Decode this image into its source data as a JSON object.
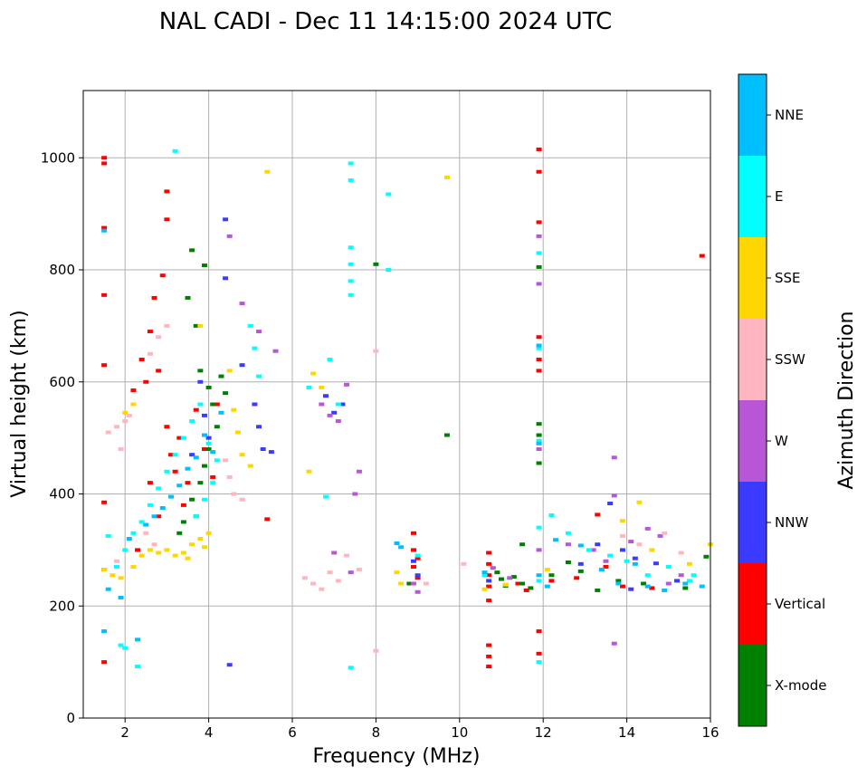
{
  "chart_data": {
    "type": "scatter",
    "title": "NAL CADI - Dec 11 14:15:00 2024 UTC",
    "xlabel": "Frequency (MHz)",
    "ylabel": "Virtual height (km)",
    "xlim": [
      1,
      16
    ],
    "ylim": [
      0,
      1120
    ],
    "xticks": [
      2,
      4,
      6,
      8,
      10,
      12,
      14,
      16
    ],
    "yticks": [
      0,
      200,
      400,
      600,
      800,
      1000
    ],
    "grid": true,
    "colorbar": {
      "label": "Azimuth Direction",
      "categories": [
        "X-mode",
        "Vertical",
        "NNW",
        "W",
        "SSW",
        "SSE",
        "E",
        "NNE"
      ],
      "colors": [
        "#008000",
        "#ff0000",
        "#3b3bff",
        "#b857d6",
        "#ffb6c1",
        "#ffd700",
        "#00ffff",
        "#00bfff"
      ]
    },
    "series": [
      {
        "name": "Vertical",
        "points": [
          [
            1.5,
            1000
          ],
          [
            1.5,
            990
          ],
          [
            1.5,
            875
          ],
          [
            1.5,
            755
          ],
          [
            1.5,
            630
          ],
          [
            1.5,
            385
          ],
          [
            1.5,
            265
          ],
          [
            1.5,
            100
          ],
          [
            2.2,
            585
          ],
          [
            2.4,
            640
          ],
          [
            2.5,
            600
          ],
          [
            2.6,
            690
          ],
          [
            2.7,
            750
          ],
          [
            2.8,
            620
          ],
          [
            2.9,
            790
          ],
          [
            3.0,
            520
          ],
          [
            3.1,
            470
          ],
          [
            3.2,
            440
          ],
          [
            3.3,
            500
          ],
          [
            3.5,
            420
          ],
          [
            3.7,
            550
          ],
          [
            3.9,
            480
          ],
          [
            4.1,
            430
          ],
          [
            4.2,
            560
          ],
          [
            3.0,
            940
          ],
          [
            3.0,
            890
          ],
          [
            2.6,
            420
          ],
          [
            2.8,
            360
          ],
          [
            2.3,
            300
          ],
          [
            3.4,
            380
          ],
          [
            5.4,
            355
          ],
          [
            8.9,
            330
          ],
          [
            8.9,
            300
          ],
          [
            8.9,
            270
          ],
          [
            9.0,
            250
          ],
          [
            9.0,
            285
          ],
          [
            10.7,
            295
          ],
          [
            10.7,
            275
          ],
          [
            10.7,
            255
          ],
          [
            10.7,
            235
          ],
          [
            10.7,
            210
          ],
          [
            10.7,
            130
          ],
          [
            10.7,
            110
          ],
          [
            10.7,
            92
          ],
          [
            11.9,
            1015
          ],
          [
            11.9,
            975
          ],
          [
            11.9,
            885
          ],
          [
            11.9,
            680
          ],
          [
            11.9,
            640
          ],
          [
            11.9,
            620
          ],
          [
            11.9,
            155
          ],
          [
            11.9,
            115
          ],
          [
            12.2,
            245
          ],
          [
            12.8,
            250
          ],
          [
            13.3,
            363
          ],
          [
            13.5,
            270
          ],
          [
            13.9,
            235
          ],
          [
            14.6,
            232
          ],
          [
            15.8,
            825
          ],
          [
            11.4,
            240
          ],
          [
            11.6,
            228
          ]
        ]
      },
      {
        "name": "X-mode",
        "points": [
          [
            3.6,
            835
          ],
          [
            3.9,
            808
          ],
          [
            3.5,
            750
          ],
          [
            3.7,
            700
          ],
          [
            3.8,
            620
          ],
          [
            4.0,
            590
          ],
          [
            4.1,
            560
          ],
          [
            4.2,
            520
          ],
          [
            4.0,
            480
          ],
          [
            3.9,
            450
          ],
          [
            3.8,
            420
          ],
          [
            3.6,
            390
          ],
          [
            3.4,
            350
          ],
          [
            3.3,
            330
          ],
          [
            4.3,
            610
          ],
          [
            4.4,
            580
          ],
          [
            3.7,
            360
          ],
          [
            8.0,
            810
          ],
          [
            9.7,
            505
          ],
          [
            11.9,
            525
          ],
          [
            11.9,
            505
          ],
          [
            11.9,
            805
          ],
          [
            11.9,
            455
          ],
          [
            10.9,
            260
          ],
          [
            11.0,
            248
          ],
          [
            11.1,
            236
          ],
          [
            11.3,
            252
          ],
          [
            11.5,
            240
          ],
          [
            11.7,
            232
          ],
          [
            12.6,
            278
          ],
          [
            12.9,
            262
          ],
          [
            13.3,
            228
          ],
          [
            13.8,
            245
          ],
          [
            14.4,
            240
          ],
          [
            15.4,
            232
          ],
          [
            15.9,
            288
          ],
          [
            8.8,
            240
          ],
          [
            11.5,
            310
          ],
          [
            12.2,
            255
          ]
        ]
      },
      {
        "name": "NNW",
        "points": [
          [
            3.8,
            600
          ],
          [
            3.9,
            540
          ],
          [
            4.0,
            500
          ],
          [
            3.6,
            470
          ],
          [
            4.4,
            890
          ],
          [
            4.4,
            785
          ],
          [
            4.8,
            630
          ],
          [
            5.1,
            560
          ],
          [
            5.2,
            520
          ],
          [
            5.3,
            480
          ],
          [
            6.8,
            575
          ],
          [
            7.0,
            545
          ],
          [
            7.2,
            560
          ],
          [
            8.9,
            280
          ],
          [
            9.0,
            255
          ],
          [
            10.7,
            245
          ],
          [
            13.6,
            383
          ],
          [
            13.3,
            310
          ],
          [
            13.9,
            300
          ],
          [
            14.2,
            285
          ],
          [
            14.7,
            276
          ],
          [
            15.2,
            245
          ],
          [
            12.9,
            275
          ],
          [
            14.1,
            230
          ],
          [
            4.5,
            95
          ],
          [
            5.5,
            475
          ]
        ]
      },
      {
        "name": "W",
        "points": [
          [
            4.5,
            860
          ],
          [
            4.8,
            740
          ],
          [
            5.2,
            690
          ],
          [
            5.6,
            655
          ],
          [
            6.7,
            560
          ],
          [
            6.9,
            540
          ],
          [
            7.1,
            530
          ],
          [
            7.3,
            595
          ],
          [
            7.6,
            440
          ],
          [
            7.5,
            400
          ],
          [
            7.0,
            295
          ],
          [
            7.4,
            260
          ],
          [
            8.9,
            240
          ],
          [
            9.0,
            225
          ],
          [
            11.9,
            860
          ],
          [
            11.9,
            775
          ],
          [
            11.9,
            480
          ],
          [
            11.9,
            300
          ],
          [
            12.6,
            310
          ],
          [
            13.2,
            300
          ],
          [
            13.7,
            465
          ],
          [
            13.7,
            397
          ],
          [
            13.7,
            133
          ],
          [
            14.5,
            338
          ],
          [
            14.8,
            325
          ],
          [
            15.0,
            240
          ],
          [
            15.3,
            255
          ],
          [
            14.1,
            315
          ],
          [
            13.5,
            280
          ],
          [
            11.2,
            250
          ],
          [
            10.8,
            268
          ]
        ]
      },
      {
        "name": "SSW",
        "points": [
          [
            1.6,
            510
          ],
          [
            1.8,
            520
          ],
          [
            2.0,
            530
          ],
          [
            2.1,
            540
          ],
          [
            1.9,
            480
          ],
          [
            2.6,
            650
          ],
          [
            2.8,
            680
          ],
          [
            3.0,
            700
          ],
          [
            4.4,
            460
          ],
          [
            4.5,
            430
          ],
          [
            4.6,
            400
          ],
          [
            4.8,
            390
          ],
          [
            6.3,
            250
          ],
          [
            6.5,
            240
          ],
          [
            6.7,
            230
          ],
          [
            6.9,
            260
          ],
          [
            7.1,
            245
          ],
          [
            7.3,
            290
          ],
          [
            7.6,
            265
          ],
          [
            8.0,
            655
          ],
          [
            8.0,
            120
          ],
          [
            9.2,
            240
          ],
          [
            10.1,
            275
          ],
          [
            13.9,
            325
          ],
          [
            14.3,
            310
          ],
          [
            14.9,
            330
          ],
          [
            15.3,
            295
          ],
          [
            2.5,
            330
          ],
          [
            2.7,
            310
          ],
          [
            1.8,
            280
          ]
        ]
      },
      {
        "name": "SSE",
        "points": [
          [
            1.5,
            265
          ],
          [
            1.7,
            255
          ],
          [
            1.9,
            250
          ],
          [
            2.2,
            270
          ],
          [
            2.4,
            290
          ],
          [
            2.6,
            300
          ],
          [
            2.8,
            295
          ],
          [
            3.0,
            300
          ],
          [
            3.2,
            290
          ],
          [
            3.4,
            295
          ],
          [
            3.6,
            310
          ],
          [
            3.8,
            320
          ],
          [
            3.9,
            305
          ],
          [
            4.0,
            330
          ],
          [
            3.5,
            285
          ],
          [
            2.0,
            545
          ],
          [
            2.2,
            560
          ],
          [
            3.8,
            700
          ],
          [
            4.5,
            620
          ],
          [
            4.6,
            550
          ],
          [
            4.7,
            510
          ],
          [
            4.8,
            470
          ],
          [
            5.0,
            450
          ],
          [
            5.4,
            975
          ],
          [
            6.5,
            615
          ],
          [
            6.7,
            590
          ],
          [
            8.5,
            260
          ],
          [
            8.6,
            240
          ],
          [
            9.7,
            965
          ],
          [
            10.6,
            230
          ],
          [
            11.1,
            238
          ],
          [
            13.9,
            352
          ],
          [
            14.3,
            385
          ],
          [
            14.6,
            300
          ],
          [
            15.5,
            275
          ],
          [
            16.0,
            310
          ],
          [
            6.4,
            440
          ],
          [
            12.1,
            265
          ]
        ]
      },
      {
        "name": "E",
        "points": [
          [
            3.2,
            1012
          ],
          [
            1.6,
            325
          ],
          [
            1.8,
            270
          ],
          [
            2.0,
            300
          ],
          [
            2.2,
            330
          ],
          [
            2.4,
            350
          ],
          [
            2.6,
            380
          ],
          [
            2.8,
            410
          ],
          [
            3.0,
            440
          ],
          [
            3.2,
            470
          ],
          [
            3.4,
            500
          ],
          [
            3.6,
            530
          ],
          [
            3.8,
            560
          ],
          [
            4.0,
            490
          ],
          [
            4.2,
            460
          ],
          [
            4.1,
            420
          ],
          [
            3.9,
            390
          ],
          [
            3.7,
            360
          ],
          [
            1.9,
            130
          ],
          [
            2.0,
            125
          ],
          [
            2.3,
            92
          ],
          [
            5.0,
            700
          ],
          [
            5.1,
            660
          ],
          [
            5.2,
            610
          ],
          [
            6.4,
            590
          ],
          [
            6.9,
            640
          ],
          [
            7.1,
            560
          ],
          [
            7.4,
            990
          ],
          [
            7.4,
            960
          ],
          [
            7.4,
            840
          ],
          [
            7.4,
            810
          ],
          [
            7.4,
            780
          ],
          [
            7.4,
            755
          ],
          [
            8.3,
            935
          ],
          [
            8.3,
            800
          ],
          [
            7.4,
            90
          ],
          [
            12.2,
            362
          ],
          [
            12.6,
            330
          ],
          [
            13.1,
            300
          ],
          [
            13.6,
            290
          ],
          [
            14.0,
            280
          ],
          [
            14.5,
            255
          ],
          [
            15.0,
            270
          ],
          [
            15.5,
            245
          ],
          [
            15.6,
            255
          ],
          [
            11.9,
            830
          ],
          [
            11.9,
            660
          ],
          [
            11.9,
            495
          ],
          [
            11.9,
            340
          ],
          [
            11.9,
            245
          ],
          [
            11.9,
            100
          ],
          [
            6.8,
            395
          ],
          [
            9.0,
            290
          ],
          [
            10.6,
            255
          ]
        ]
      },
      {
        "name": "NNE",
        "points": [
          [
            1.5,
            870
          ],
          [
            1.5,
            155
          ],
          [
            1.6,
            230
          ],
          [
            1.9,
            215
          ],
          [
            2.1,
            320
          ],
          [
            2.3,
            140
          ],
          [
            2.5,
            345
          ],
          [
            2.7,
            360
          ],
          [
            2.9,
            375
          ],
          [
            3.1,
            395
          ],
          [
            3.3,
            415
          ],
          [
            3.5,
            445
          ],
          [
            3.7,
            465
          ],
          [
            3.9,
            505
          ],
          [
            4.1,
            475
          ],
          [
            4.3,
            545
          ],
          [
            8.5,
            312
          ],
          [
            8.6,
            305
          ],
          [
            10.6,
            260
          ],
          [
            12.3,
            318
          ],
          [
            12.9,
            308
          ],
          [
            13.4,
            265
          ],
          [
            13.8,
            240
          ],
          [
            14.2,
            275
          ],
          [
            14.5,
            235
          ],
          [
            14.9,
            228
          ],
          [
            15.4,
            240
          ],
          [
            15.8,
            235
          ],
          [
            11.9,
            665
          ],
          [
            11.9,
            490
          ],
          [
            11.9,
            255
          ],
          [
            12.1,
            235
          ]
        ]
      }
    ]
  }
}
